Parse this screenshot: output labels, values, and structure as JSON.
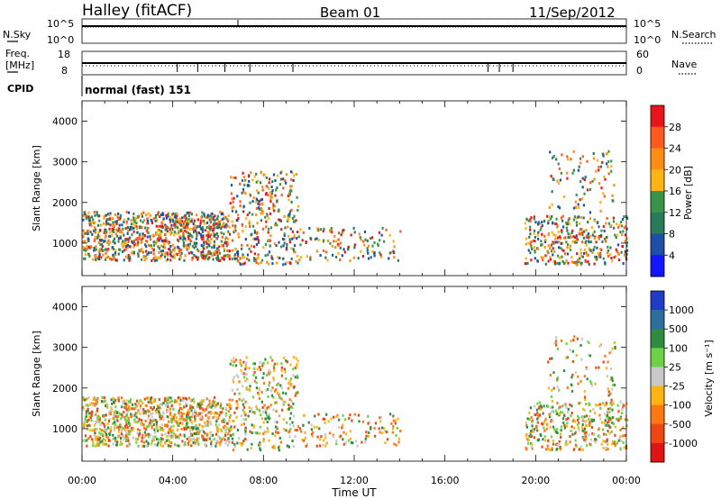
{
  "header": {
    "station": "Halley (fitACF)",
    "beam": "Beam 01",
    "date": "11/Sep/2012"
  },
  "panels": {
    "nsky_label": "N.Sky",
    "nsky_ticks": [
      "10^5",
      "10^0"
    ],
    "nsearch_label": "N.Search",
    "nsearch_ticks": [
      "10^5",
      "10^0"
    ],
    "freq_label_1": "Freq.",
    "freq_label_2": "[MHz]",
    "freq_ticks": [
      "18",
      "8"
    ],
    "nave_label": "Nave",
    "nave_ticks": [
      "60",
      "0"
    ],
    "cpid_label": "CPID",
    "cpid_value": "normal (fast) 151"
  },
  "chart_data": [
    {
      "type": "heatmap",
      "panel": "power",
      "xlabel": "Time UT",
      "ylabel": "Slant Range [km]",
      "xlim": [
        0,
        24
      ],
      "ylim": [
        200,
        4500
      ],
      "yticks": [
        "1000",
        "2000",
        "3000",
        "4000"
      ],
      "xticks": [
        "00:00",
        "04:00",
        "08:00",
        "12:00",
        "16:00",
        "20:00",
        "00:00"
      ],
      "colorbar": {
        "label": "Power [dB]",
        "ticks": [
          "28",
          "24",
          "20",
          "16",
          "12",
          "8",
          "4"
        ],
        "colors": [
          "#e8141c",
          "#ff5a1e",
          "#ff8c14",
          "#ffb414",
          "#3a9448",
          "#2c7a5c",
          "#1e4fa8",
          "#1414ff"
        ]
      }
    },
    {
      "type": "heatmap",
      "panel": "velocity",
      "xlabel": "Time UT",
      "ylabel": "Slant Range [km]",
      "xlim": [
        0,
        24
      ],
      "ylim": [
        200,
        4500
      ],
      "yticks": [
        "1000",
        "2000",
        "3000",
        "4000"
      ],
      "xticks": [
        "00:00",
        "04:00",
        "08:00",
        "12:00",
        "16:00",
        "20:00",
        "00:00"
      ],
      "colorbar": {
        "label": "Velocity [m s⁻¹]",
        "ticks": [
          "1000",
          "500",
          "100",
          "25",
          "-25",
          "-100",
          "-500",
          "-1000"
        ],
        "colors": [
          "#1e3cc8",
          "#2d6e9c",
          "#2e8c3e",
          "#6ed246",
          "#c8c8c8",
          "#ffb414",
          "#ff7814",
          "#f04614",
          "#e01414"
        ]
      }
    }
  ]
}
